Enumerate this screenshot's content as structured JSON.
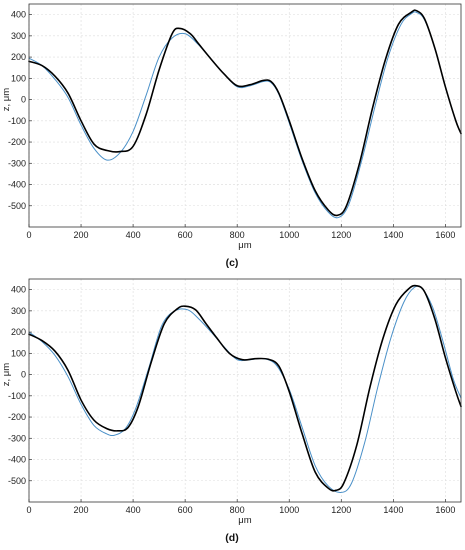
{
  "chart_data": [
    {
      "type": "line",
      "caption": "(c)",
      "xlabel": "μm",
      "ylabel": "z, μm",
      "xlim": [
        0,
        1660
      ],
      "ylim": [
        -600,
        450
      ],
      "xticks": [
        0,
        200,
        400,
        600,
        800,
        1000,
        1200,
        1400,
        1600
      ],
      "yticks": [
        -500,
        -400,
        -300,
        -200,
        -100,
        0,
        100,
        200,
        300,
        400
      ],
      "grid": true,
      "series": [
        {
          "color": "#000000",
          "x": [
            0,
            50,
            100,
            150,
            200,
            250,
            300,
            350,
            400,
            450,
            500,
            550,
            580,
            620,
            650,
            700,
            750,
            800,
            850,
            900,
            930,
            960,
            1000,
            1050,
            1100,
            1150,
            1185,
            1220,
            1270,
            1320,
            1370,
            1420,
            1470,
            1490,
            1520,
            1560,
            1600,
            1640,
            1660
          ],
          "y": [
            180,
            160,
            110,
            30,
            -100,
            -210,
            -240,
            -245,
            -220,
            -70,
            140,
            310,
            335,
            310,
            265,
            190,
            120,
            65,
            70,
            90,
            85,
            30,
            -100,
            -280,
            -430,
            -520,
            -545,
            -500,
            -300,
            -40,
            190,
            355,
            412,
            418,
            380,
            240,
            60,
            -100,
            -160
          ]
        },
        {
          "color": "#4a90c8",
          "x": [
            0,
            50,
            100,
            150,
            200,
            250,
            300,
            350,
            400,
            450,
            500,
            550,
            600,
            650,
            700,
            750,
            800,
            850,
            900,
            930,
            960,
            1000,
            1050,
            1100,
            1150,
            1190,
            1230,
            1280,
            1330,
            1380,
            1430,
            1470,
            1490,
            1520,
            1560,
            1600,
            1640,
            1660
          ],
          "y": [
            195,
            160,
            95,
            10,
            -120,
            -230,
            -285,
            -250,
            -150,
            20,
            200,
            290,
            310,
            260,
            190,
            120,
            60,
            65,
            85,
            80,
            25,
            -110,
            -290,
            -440,
            -530,
            -555,
            -490,
            -280,
            -30,
            200,
            355,
            405,
            410,
            375,
            240,
            60,
            -100,
            -160
          ]
        }
      ]
    },
    {
      "type": "line",
      "caption": "(d)",
      "xlabel": "μm",
      "ylabel": "z, μm",
      "xlim": [
        0,
        1660
      ],
      "ylim": [
        -600,
        450
      ],
      "xticks": [
        0,
        200,
        400,
        600,
        800,
        1000,
        1200,
        1400,
        1600
      ],
      "yticks": [
        -500,
        -400,
        -300,
        -200,
        -100,
        0,
        100,
        200,
        300,
        400
      ],
      "grid": true,
      "series": [
        {
          "color": "#000000",
          "x": [
            0,
            50,
            100,
            150,
            200,
            250,
            300,
            340,
            380,
            420,
            470,
            520,
            570,
            600,
            640,
            680,
            720,
            770,
            820,
            870,
            920,
            960,
            1000,
            1050,
            1100,
            1150,
            1180,
            1210,
            1260,
            1310,
            1360,
            1410,
            1460,
            1490,
            1520,
            1560,
            1600,
            1640,
            1660
          ],
          "y": [
            190,
            160,
            110,
            20,
            -120,
            -215,
            -255,
            -265,
            -250,
            -150,
            60,
            240,
            310,
            322,
            305,
            240,
            175,
            100,
            70,
            75,
            72,
            40,
            -80,
            -280,
            -460,
            -535,
            -545,
            -510,
            -330,
            -60,
            170,
            330,
            405,
            418,
            390,
            260,
            80,
            -80,
            -150
          ]
        },
        {
          "color": "#4a90c8",
          "x": [
            0,
            50,
            100,
            150,
            200,
            250,
            300,
            330,
            370,
            410,
            460,
            510,
            560,
            610,
            650,
            700,
            750,
            800,
            850,
            900,
            950,
            1000,
            1050,
            1100,
            1150,
            1200,
            1240,
            1290,
            1340,
            1390,
            1440,
            1480,
            1510,
            1550,
            1590,
            1630,
            1660
          ],
          "y": [
            200,
            155,
            90,
            -10,
            -140,
            -240,
            -280,
            -285,
            -255,
            -160,
            30,
            230,
            300,
            305,
            265,
            200,
            130,
            70,
            70,
            75,
            45,
            -70,
            -250,
            -430,
            -525,
            -555,
            -510,
            -320,
            -60,
            170,
            340,
            410,
            405,
            320,
            160,
            -20,
            -110
          ]
        }
      ]
    }
  ]
}
